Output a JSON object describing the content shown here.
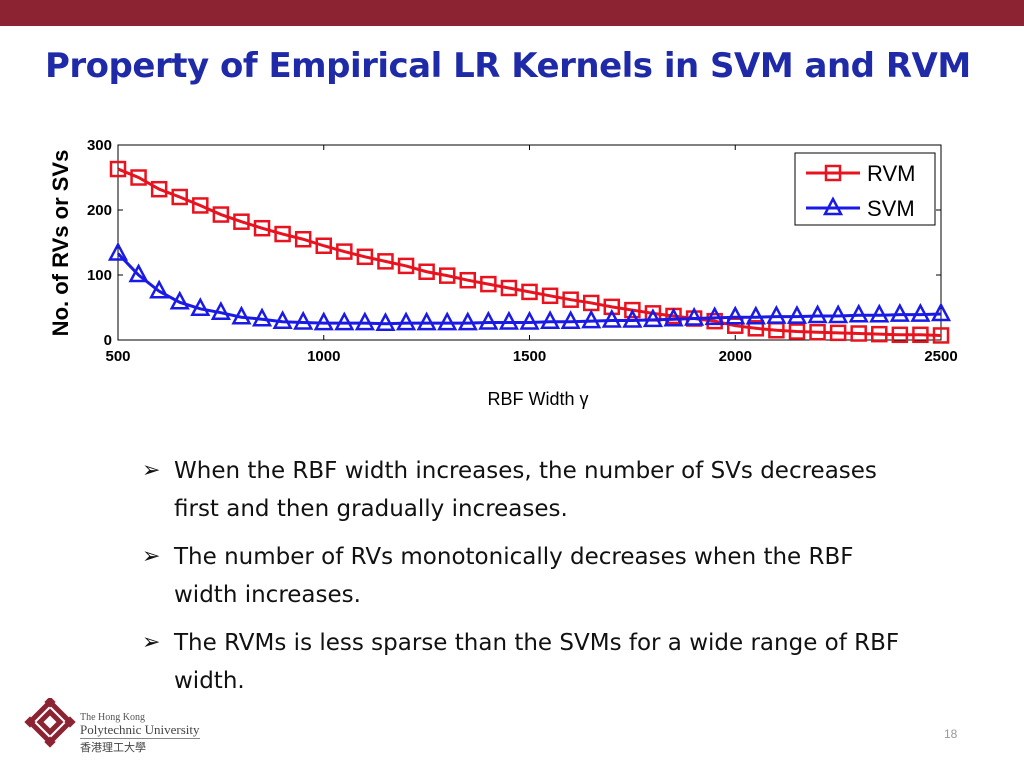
{
  "slide": {
    "title": "Property of Empirical LR Kernels in SVM and RVM",
    "bullets": [
      "When the RBF width increases, the number of SVs decreases first and then gradually increases.",
      "The number of RVs monotonically decreases when the RBF width increases.",
      "The RVMs is less sparse than the SVMs for a wide range of RBF width."
    ],
    "bullet_marker": "➢",
    "logo_text_line1": "The Hong Kong",
    "logo_text_line2": "Polytechnic University",
    "logo_text_zh": "香港理工大學",
    "page_number": "18",
    "top_bar_color": "#8b2332",
    "title_color": "#1f2aa8"
  },
  "chart_data": {
    "type": "line",
    "xlabel": "RBF Width γ",
    "ylabel": "No. of RVs or SVs",
    "xlim": [
      500,
      2500
    ],
    "ylim": [
      0,
      300
    ],
    "xticks": [
      500,
      1000,
      1500,
      2000,
      2500
    ],
    "yticks": [
      0,
      100,
      200,
      300
    ],
    "grid": false,
    "legend_position": "top-right",
    "x": [
      500,
      550,
      600,
      650,
      700,
      750,
      800,
      850,
      900,
      950,
      1000,
      1050,
      1100,
      1150,
      1200,
      1250,
      1300,
      1350,
      1400,
      1450,
      1500,
      1550,
      1600,
      1650,
      1700,
      1750,
      1800,
      1850,
      1900,
      1950,
      2000,
      2050,
      2100,
      2150,
      2200,
      2250,
      2300,
      2350,
      2400,
      2450,
      2500
    ],
    "series": [
      {
        "name": "RVM",
        "color": "#e8131f",
        "marker": "square",
        "values": [
          263,
          250,
          232,
          220,
          207,
          193,
          182,
          172,
          163,
          155,
          145,
          136,
          128,
          121,
          114,
          105,
          99,
          92,
          86,
          80,
          74,
          68,
          62,
          57,
          51,
          46,
          41,
          37,
          33,
          29,
          22,
          18,
          15,
          13,
          12,
          11,
          10,
          9,
          8,
          8,
          7
        ]
      },
      {
        "name": "SVM",
        "color": "#1a1ae6",
        "marker": "triangle",
        "values": [
          133,
          100,
          75,
          58,
          48,
          42,
          35,
          32,
          28,
          27,
          26,
          26,
          26,
          25,
          26,
          26,
          26,
          26,
          27,
          27,
          27,
          28,
          28,
          29,
          30,
          30,
          31,
          32,
          33,
          34,
          35,
          35,
          36,
          36,
          37,
          37,
          38,
          38,
          39,
          39,
          40
        ]
      }
    ]
  }
}
